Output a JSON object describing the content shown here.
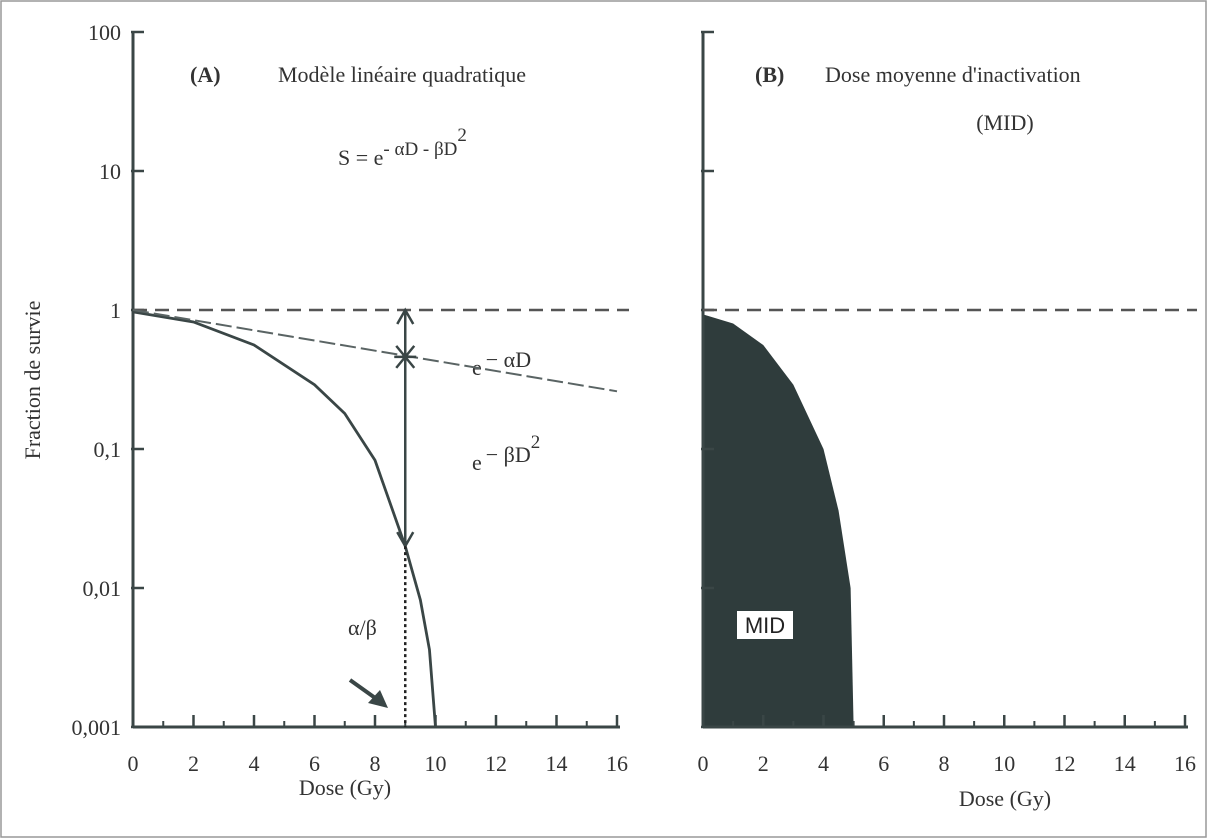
{
  "chart_data": [
    {
      "type": "line",
      "panel": "(A)",
      "title": "Modèle linéaire quadratique",
      "formula": {
        "base": "S = e",
        "exponent": "- αD - βD",
        "power": "2"
      },
      "xlabel": "Dose (Gy)",
      "ylabel": "Fraction de survie",
      "log_y": true,
      "xlim": [
        0,
        16
      ],
      "xticks": [
        0,
        2,
        4,
        6,
        8,
        10,
        12,
        14,
        16
      ],
      "ylim": [
        0.001,
        100
      ],
      "yticks": [
        {
          "value": 0.001,
          "label": "0,001"
        },
        {
          "value": 0.01,
          "label": "0,01"
        },
        {
          "value": 0.1,
          "label": "0,1"
        },
        1,
        10,
        100
      ],
      "reference_line": 1,
      "curves": [
        {
          "color": "#3a4646",
          "dashed": false,
          "x": [
            0,
            2,
            4,
            6,
            7,
            8,
            9,
            9.5,
            9.8,
            10
          ],
          "values": [
            0.97,
            0.82,
            0.56,
            0.29,
            0.18,
            0.083,
            0.02,
            0.0082,
            0.0036,
            0.001
          ]
        },
        {
          "color": "#5a6464",
          "dashed": true,
          "x": [
            0,
            16
          ],
          "values": [
            1,
            0.26
          ]
        }
      ],
      "curve_labels": [
        {
          "base": "e",
          "exponent": "− αD"
        },
        {
          "base": "e",
          "exponent": "− βD",
          "power": "2"
        }
      ],
      "arrow": {
        "x": 9,
        "from": 1,
        "to": 0.02,
        "marker": 0.46
      },
      "ratio_label": "α/β"
    },
    {
      "type": "area",
      "panel": "(B)",
      "title": "Dose moyenne d'inactivation",
      "subtitle": "(MID)",
      "xlabel": "Dose (Gy)",
      "area_label": "MID",
      "color": "#2f3c3c",
      "log_y": true,
      "xlim": [
        0,
        16
      ],
      "xticks": [
        0,
        2,
        4,
        6,
        8,
        10,
        12,
        14,
        16
      ],
      "ylim": [
        0.001,
        100
      ],
      "yticks": [
        0.001,
        0.01,
        0.1,
        1,
        10,
        100
      ],
      "reference_line": 1,
      "x": [
        0,
        1,
        2,
        3,
        4,
        4.5,
        4.9,
        5
      ],
      "values": [
        0.93,
        0.8,
        0.56,
        0.29,
        0.1,
        0.036,
        0.01,
        0.001
      ]
    }
  ]
}
